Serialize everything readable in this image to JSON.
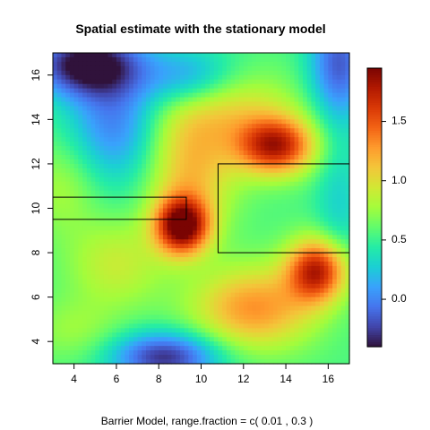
{
  "chart_data": {
    "type": "heatmap",
    "title": "Spatial estimate with the stationary model",
    "subtitle": "Barrier Model, range.fraction = c( 0.01 ,  0.3 )",
    "xlim": [
      3,
      17
    ],
    "ylim": [
      3,
      17
    ],
    "x_ticks": [
      4,
      6,
      8,
      10,
      12,
      14,
      16
    ],
    "y_ticks": [
      4,
      6,
      8,
      10,
      12,
      14,
      16
    ],
    "colorbar": {
      "range": [
        -0.4,
        1.95
      ],
      "ticks": [
        0.0,
        0.5,
        1.0,
        1.5
      ],
      "tick_labels": [
        "0.0",
        "0.5",
        "1.0",
        "1.5"
      ],
      "colormap": [
        "#30123b",
        "#4145ab",
        "#4675ed",
        "#39a2fc",
        "#1bcfd4",
        "#24eca6",
        "#61fc6c",
        "#a4fc3b",
        "#d1e834",
        "#f3c63a",
        "#fe9b2d",
        "#f36315",
        "#d93806",
        "#b11901",
        "#7a0402"
      ]
    },
    "barriers": [
      {
        "x": [
          3,
          9.3
        ],
        "y": [
          9.5,
          10.5
        ]
      },
      {
        "x": [
          10.8,
          17
        ],
        "y": [
          8,
          12
        ]
      }
    ],
    "field_components": {
      "base": 0.55,
      "hotspots": [
        {
          "x": 9.1,
          "y": 9.2,
          "amp": 1.45,
          "sx": 0.9,
          "sy": 0.9
        },
        {
          "x": 13.5,
          "y": 12.8,
          "amp": 1.2,
          "sx": 1.3,
          "sy": 0.9
        },
        {
          "x": 15.5,
          "y": 7.2,
          "amp": 1.2,
          "sx": 1.0,
          "sy": 1.0
        },
        {
          "x": 12.5,
          "y": 5.5,
          "amp": 0.75,
          "sx": 2.0,
          "sy": 1.3
        },
        {
          "x": 9.5,
          "y": 11.8,
          "amp": 0.6,
          "sx": 1.5,
          "sy": 1.8
        },
        {
          "x": 11,
          "y": 14.5,
          "amp": 0.45,
          "sx": 2.5,
          "sy": 1.2
        },
        {
          "x": 3.5,
          "y": 11,
          "amp": 0.25,
          "sx": 1.2,
          "sy": 1.5
        },
        {
          "x": 6,
          "y": 7.5,
          "amp": 0.35,
          "sx": 1.6,
          "sy": 1.4
        },
        {
          "x": 4,
          "y": 4.5,
          "amp": 0.2,
          "sx": 1.5,
          "sy": 1.0
        }
      ],
      "coldspots": [
        {
          "x": 4.5,
          "y": 16.5,
          "amp": 0.95,
          "sx": 1.8,
          "sy": 1.0
        },
        {
          "x": 6,
          "y": 14,
          "amp": 0.6,
          "sx": 1.6,
          "sy": 2.0
        },
        {
          "x": 9.5,
          "y": 15.8,
          "amp": 0.5,
          "sx": 1.5,
          "sy": 1.0
        },
        {
          "x": 16.5,
          "y": 16.5,
          "amp": 0.7,
          "sx": 1.0,
          "sy": 1.8
        },
        {
          "x": 8.3,
          "y": 3.3,
          "amp": 0.85,
          "sx": 1.8,
          "sy": 0.8
        },
        {
          "x": 16.5,
          "y": 10,
          "amp": 0.25,
          "sx": 0.8,
          "sy": 2.5
        }
      ]
    }
  }
}
